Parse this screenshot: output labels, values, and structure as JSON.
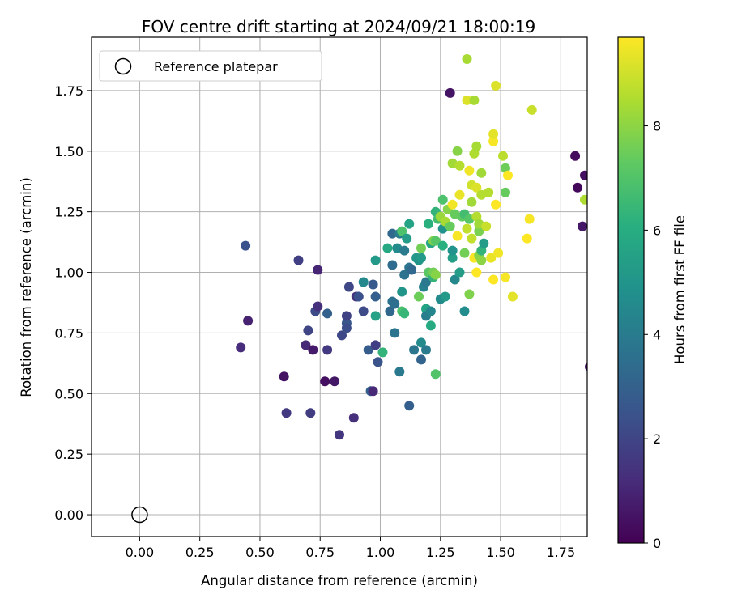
{
  "chart_data": {
    "type": "scatter",
    "title": "FOV centre drift starting at 2024/09/21 18:00:19",
    "xlabel": "Angular distance from reference (arcmin)",
    "ylabel": "Rotation from reference (arcmin)",
    "xlim": [
      -0.2,
      1.86
    ],
    "ylim": [
      -0.09,
      1.97
    ],
    "x_ticks": [
      "0.00",
      "0.25",
      "0.50",
      "0.75",
      "1.00",
      "1.25",
      "1.50",
      "1.75"
    ],
    "y_ticks": [
      "0.00",
      "0.25",
      "0.50",
      "0.75",
      "1.00",
      "1.25",
      "1.50",
      "1.75"
    ],
    "grid": true,
    "legend": {
      "placement": "top-left",
      "entries": [
        "Reference platepar"
      ]
    },
    "reference_point": {
      "x": 0.0,
      "y": 0.0
    },
    "colorbar": {
      "label": "Hours from first FF file",
      "colormap": "viridis",
      "range": [
        0,
        9.7
      ],
      "ticks": [
        "0",
        "2",
        "4",
        "6",
        "8"
      ]
    },
    "points": [
      [
        0.42,
        0.69,
        1.2
      ],
      [
        0.44,
        1.11,
        2.5
      ],
      [
        0.45,
        0.8,
        0.9
      ],
      [
        0.6,
        0.57,
        0.5
      ],
      [
        0.61,
        0.42,
        1.6
      ],
      [
        0.66,
        1.05,
        1.8
      ],
      [
        0.69,
        0.7,
        1.1
      ],
      [
        0.7,
        0.76,
        2.0
      ],
      [
        0.71,
        0.42,
        1.7
      ],
      [
        0.72,
        0.68,
        0.7
      ],
      [
        0.73,
        0.84,
        2.2
      ],
      [
        0.74,
        0.86,
        1.3
      ],
      [
        0.74,
        1.01,
        1.0
      ],
      [
        0.77,
        0.55,
        0.4
      ],
      [
        0.78,
        0.68,
        1.6
      ],
      [
        0.78,
        0.83,
        3.0
      ],
      [
        0.81,
        0.55,
        0.6
      ],
      [
        0.83,
        0.33,
        1.5
      ],
      [
        0.84,
        0.74,
        2.1
      ],
      [
        0.86,
        0.79,
        2.6
      ],
      [
        0.86,
        0.82,
        1.9
      ],
      [
        0.86,
        0.77,
        2.3
      ],
      [
        0.87,
        0.94,
        2.1
      ],
      [
        0.89,
        0.4,
        1.3
      ],
      [
        0.9,
        0.9,
        1.4
      ],
      [
        0.91,
        0.9,
        2.4
      ],
      [
        0.93,
        0.84,
        2.2
      ],
      [
        0.93,
        0.96,
        4.5
      ],
      [
        0.95,
        0.68,
        2.8
      ],
      [
        0.96,
        0.51,
        3.0
      ],
      [
        0.97,
        0.95,
        2.7
      ],
      [
        0.97,
        0.51,
        1.1
      ],
      [
        0.98,
        0.7,
        1.8
      ],
      [
        0.98,
        0.82,
        5.5
      ],
      [
        0.98,
        1.05,
        5.2
      ],
      [
        0.98,
        0.9,
        2.9
      ],
      [
        0.99,
        0.63,
        2.5
      ],
      [
        1.01,
        0.67,
        6.3
      ],
      [
        1.03,
        1.1,
        5.8
      ],
      [
        1.04,
        0.84,
        3.2
      ],
      [
        1.05,
        1.03,
        3.4
      ],
      [
        1.05,
        0.88,
        3.6
      ],
      [
        1.05,
        1.16,
        3.3
      ],
      [
        1.06,
        0.75,
        3.7
      ],
      [
        1.06,
        0.87,
        3.5
      ],
      [
        1.07,
        1.1,
        4.6
      ],
      [
        1.08,
        0.59,
        3.9
      ],
      [
        1.08,
        1.16,
        4.1
      ],
      [
        1.09,
        1.17,
        6.9
      ],
      [
        1.09,
        0.92,
        5.0
      ],
      [
        1.09,
        0.84,
        6.9
      ],
      [
        1.1,
        0.99,
        3.6
      ],
      [
        1.1,
        1.09,
        4.0
      ],
      [
        1.1,
        0.83,
        6.4
      ],
      [
        1.11,
        1.14,
        5.3
      ],
      [
        1.12,
        0.45,
        2.9
      ],
      [
        1.12,
        1.02,
        3.8
      ],
      [
        1.12,
        1.2,
        5.6
      ],
      [
        1.13,
        1.01,
        3.3
      ],
      [
        1.14,
        0.68,
        3.8
      ],
      [
        1.15,
        1.06,
        5.1
      ],
      [
        1.16,
        1.05,
        5.0
      ],
      [
        1.16,
        0.9,
        7.5
      ],
      [
        1.17,
        0.64,
        3.1
      ],
      [
        1.17,
        1.06,
        5.2
      ],
      [
        1.17,
        1.1,
        7.6
      ],
      [
        1.17,
        0.71,
        4.6
      ],
      [
        1.18,
        0.94,
        4.2
      ],
      [
        1.19,
        0.68,
        4.0
      ],
      [
        1.19,
        0.85,
        5.6
      ],
      [
        1.19,
        0.82,
        4.1
      ],
      [
        1.19,
        0.96,
        3.9
      ],
      [
        1.2,
        1.2,
        6.1
      ],
      [
        1.2,
        1.0,
        7.2
      ],
      [
        1.21,
        0.84,
        4.4
      ],
      [
        1.21,
        1.12,
        5.7
      ],
      [
        1.21,
        0.78,
        5.9
      ],
      [
        1.22,
        1.13,
        7.8
      ],
      [
        1.22,
        0.98,
        6.3
      ],
      [
        1.22,
        1.0,
        7.6
      ],
      [
        1.23,
        1.25,
        6.3
      ],
      [
        1.23,
        0.99,
        7.9
      ],
      [
        1.23,
        0.58,
        7.0
      ],
      [
        1.23,
        1.13,
        7.1
      ],
      [
        1.24,
        1.22,
        6.7
      ],
      [
        1.25,
        1.23,
        8.2
      ],
      [
        1.25,
        0.89,
        4.6
      ],
      [
        1.26,
        1.3,
        6.9
      ],
      [
        1.26,
        1.18,
        4.9
      ],
      [
        1.26,
        1.11,
        6.1
      ],
      [
        1.27,
        0.9,
        5.2
      ],
      [
        1.27,
        1.21,
        8.4
      ],
      [
        1.28,
        1.26,
        7.9
      ],
      [
        1.29,
        1.19,
        7.4
      ],
      [
        1.3,
        1.45,
        8.3
      ],
      [
        1.3,
        1.06,
        5.4
      ],
      [
        1.3,
        1.28,
        9.5
      ],
      [
        1.3,
        1.09,
        4.9
      ],
      [
        1.31,
        0.97,
        4.5
      ],
      [
        1.31,
        1.24,
        7.4
      ],
      [
        1.32,
        1.15,
        9.6
      ],
      [
        1.32,
        1.5,
        7.9
      ],
      [
        1.33,
        1.32,
        9.4
      ],
      [
        1.33,
        1.44,
        8.6
      ],
      [
        1.33,
        1.0,
        5.3
      ],
      [
        1.34,
        1.23,
        7.3
      ],
      [
        1.35,
        1.24,
        6.7
      ],
      [
        1.35,
        0.84,
        4.7
      ],
      [
        1.35,
        1.08,
        7.6
      ],
      [
        1.36,
        1.88,
        8.4
      ],
      [
        1.36,
        1.18,
        8.8
      ],
      [
        1.36,
        1.71,
        9.2
      ],
      [
        1.37,
        1.42,
        9.5
      ],
      [
        1.37,
        1.22,
        7.1
      ],
      [
        1.37,
        0.91,
        7.8
      ],
      [
        1.38,
        1.36,
        9.0
      ],
      [
        1.38,
        1.29,
        8.3
      ],
      [
        1.38,
        1.14,
        8.8
      ],
      [
        1.39,
        1.49,
        8.5
      ],
      [
        1.39,
        1.06,
        9.6
      ],
      [
        1.39,
        1.71,
        8.4
      ],
      [
        1.4,
        1.52,
        8.4
      ],
      [
        1.4,
        1.0,
        9.7
      ],
      [
        1.4,
        1.23,
        8.6
      ],
      [
        1.4,
        1.35,
        9.2
      ],
      [
        1.41,
        1.07,
        7.9
      ],
      [
        1.41,
        1.17,
        7.7
      ],
      [
        1.41,
        1.2,
        8.3
      ],
      [
        1.42,
        1.41,
        8.3
      ],
      [
        1.42,
        1.32,
        8.6
      ],
      [
        1.42,
        1.09,
        6.3
      ],
      [
        1.42,
        1.05,
        8.0
      ],
      [
        1.43,
        1.12,
        5.3
      ],
      [
        1.44,
        1.19,
        8.9
      ],
      [
        1.45,
        1.33,
        8.6
      ],
      [
        1.46,
        1.06,
        9.4
      ],
      [
        1.47,
        0.97,
        9.7
      ],
      [
        1.47,
        1.54,
        9.6
      ],
      [
        1.47,
        1.57,
        9.3
      ],
      [
        1.48,
        1.28,
        9.7
      ],
      [
        1.48,
        1.77,
        9.2
      ],
      [
        1.49,
        1.08,
        9.5
      ],
      [
        1.51,
        1.48,
        8.7
      ],
      [
        1.52,
        1.43,
        7.5
      ],
      [
        1.52,
        1.33,
        7.4
      ],
      [
        1.52,
        0.98,
        9.6
      ],
      [
        1.53,
        1.4,
        9.7
      ],
      [
        1.55,
        0.9,
        9.3
      ],
      [
        1.61,
        1.14,
        9.7
      ],
      [
        1.62,
        1.22,
        9.6
      ],
      [
        1.63,
        1.67,
        8.9
      ],
      [
        1.29,
        1.74,
        0.5
      ],
      [
        1.81,
        1.48,
        0.3
      ],
      [
        1.82,
        1.35,
        0.2
      ],
      [
        1.84,
        1.19,
        0.6
      ],
      [
        1.85,
        1.4,
        0.4
      ],
      [
        1.85,
        1.3,
        8.5
      ],
      [
        1.87,
        0.61,
        0.4
      ]
    ]
  }
}
